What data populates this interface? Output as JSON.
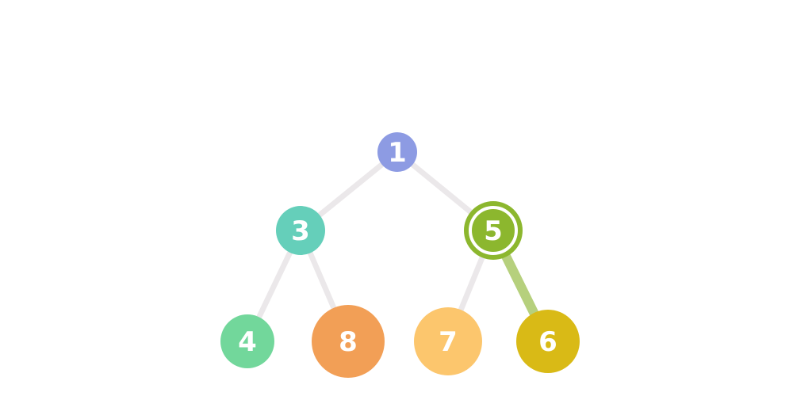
{
  "diagram": {
    "type": "binary-tree",
    "title": "",
    "nodes": [
      {
        "id": "n1",
        "label": "1",
        "color": "#8d9be3",
        "highlighted": false
      },
      {
        "id": "n3",
        "label": "3",
        "color": "#65cfba",
        "highlighted": false
      },
      {
        "id": "n5",
        "label": "5",
        "color": "#8cb72e",
        "highlighted": true
      },
      {
        "id": "n4",
        "label": "4",
        "color": "#72d79b",
        "highlighted": false
      },
      {
        "id": "n8",
        "label": "8",
        "color": "#f29f56",
        "highlighted": false
      },
      {
        "id": "n7",
        "label": "7",
        "color": "#fcc66d",
        "highlighted": false
      },
      {
        "id": "n6",
        "label": "6",
        "color": "#d9ba16",
        "highlighted": false
      }
    ],
    "edges": [
      {
        "from": "1",
        "to": "3",
        "highlighted": false
      },
      {
        "from": "1",
        "to": "5",
        "highlighted": false
      },
      {
        "from": "3",
        "to": "4",
        "highlighted": false
      },
      {
        "from": "3",
        "to": "8",
        "highlighted": false
      },
      {
        "from": "5",
        "to": "7",
        "highlighted": false
      },
      {
        "from": "5",
        "to": "6",
        "highlighted": true
      }
    ],
    "colors": {
      "edge_default": "#ebe8ea",
      "edge_highlight": "#b6d07d",
      "label": "#ffffff",
      "background": "#ffffff"
    }
  }
}
